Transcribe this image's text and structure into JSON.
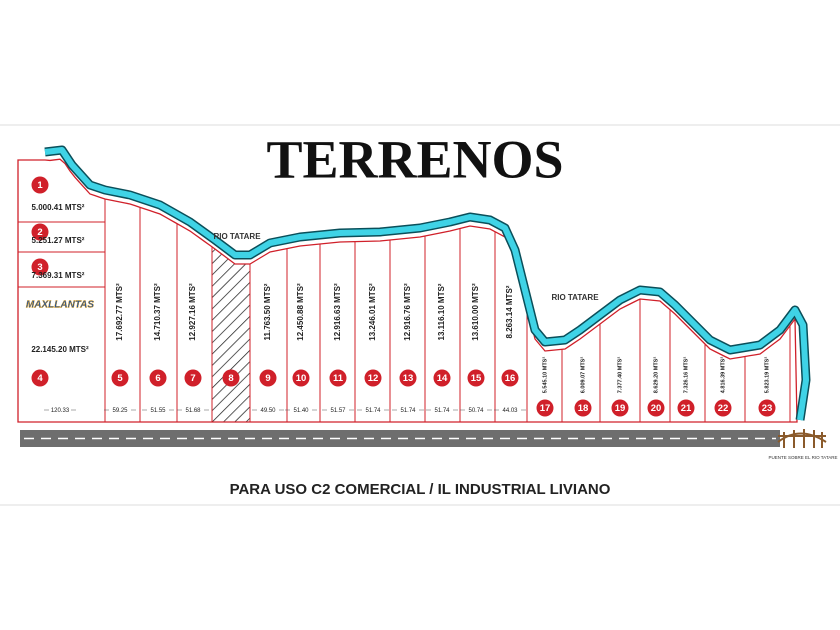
{
  "header": {
    "title": "TERRENOS"
  },
  "river_labels": [
    "RIO TATARE",
    "RIO TATARE"
  ],
  "logo": "MAXLLANTAS",
  "lots": [
    {
      "number": "1",
      "area": "5.000.41 MTS²"
    },
    {
      "number": "2",
      "area": "5.251.27 MTS²"
    },
    {
      "number": "3",
      "area": "7.369.31 MTS²"
    },
    {
      "number": "4",
      "area": "22.145.20 MTS²",
      "frontage": "120.33"
    },
    {
      "number": "5",
      "area": "17.692.77 MTS²",
      "frontage": "59.25"
    },
    {
      "number": "6",
      "area": "14.710.37 MTS²",
      "frontage": "51.55"
    },
    {
      "number": "7",
      "area": "12.927.16 MTS²",
      "frontage": "51.68"
    },
    {
      "number": "8"
    },
    {
      "number": "9",
      "area": "11.763.50 MTS²",
      "frontage": "49.50"
    },
    {
      "number": "10",
      "area": "12.450.88 MTS²",
      "frontage": "51.40"
    },
    {
      "number": "11",
      "area": "12.916.63 MTS²",
      "frontage": "51.57"
    },
    {
      "number": "12",
      "area": "13.246.01 MTS²",
      "frontage": "51.74"
    },
    {
      "number": "13",
      "area": "12.916.76 MTS²",
      "frontage": "51.74"
    },
    {
      "number": "14",
      "area": "13.116.10 MTS²",
      "frontage": "51.74"
    },
    {
      "number": "15",
      "area": "13.610.00 MTS²",
      "frontage": "50.74"
    },
    {
      "number": "16",
      "area": "8.263.14 MTS²",
      "frontage": "44.03"
    },
    {
      "number": "17",
      "area": "5.545.10 MTS²"
    },
    {
      "number": "18",
      "area": "6.009.07 MTS²"
    },
    {
      "number": "19",
      "area": "7.377.40 MTS²"
    },
    {
      "number": "20",
      "area": "8.629.20 MTS²"
    },
    {
      "number": "21",
      "area": "7.326.16 MTS²"
    },
    {
      "number": "22",
      "area": "4.816.39 MTS²"
    },
    {
      "number": "23",
      "area": "5.823.19 MTS²"
    }
  ],
  "bridge_label": "PUENTE SOBRE EL RIO TATARE",
  "footer": {
    "subtitle": "PARA USO C2 COMERCIAL / IL INDUSTRIAL LIVIANO"
  }
}
